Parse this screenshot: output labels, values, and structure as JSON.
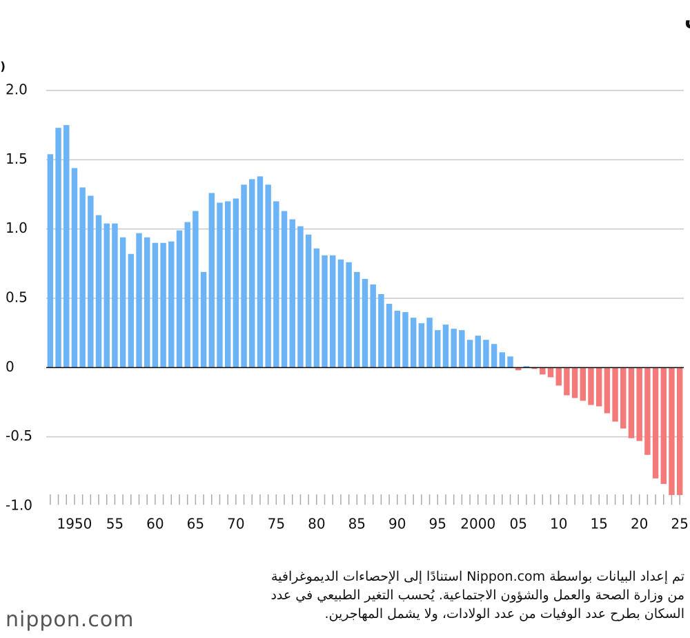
{
  "chart_data": {
    "type": "bar",
    "title": "الزيادة/الانخفاض الطبيعي في عدد السكان في اليابان",
    "y_unit": "(مليون)",
    "categories": [
      null,
      null,
      null,
      "1950",
      null,
      null,
      null,
      null,
      "55",
      null,
      null,
      null,
      null,
      "60",
      null,
      null,
      null,
      null,
      "65",
      null,
      null,
      null,
      null,
      "70",
      null,
      null,
      null,
      null,
      "75",
      null,
      null,
      null,
      null,
      "80",
      null,
      null,
      null,
      null,
      "85",
      null,
      null,
      null,
      null,
      "90",
      null,
      null,
      null,
      null,
      "95",
      null,
      null,
      null,
      null,
      "2000",
      null,
      null,
      null,
      null,
      "05",
      null,
      null,
      null,
      null,
      "10",
      null,
      null,
      null,
      null,
      "15",
      null,
      null,
      null,
      null,
      "20",
      null,
      null,
      null,
      null,
      "25"
    ],
    "values": [
      1.54,
      1.73,
      1.75,
      1.44,
      1.3,
      1.24,
      1.1,
      1.04,
      1.04,
      0.94,
      0.82,
      0.97,
      0.94,
      0.9,
      0.9,
      0.91,
      0.99,
      1.05,
      1.13,
      0.69,
      1.26,
      1.19,
      1.2,
      1.22,
      1.32,
      1.36,
      1.38,
      1.32,
      1.2,
      1.13,
      1.07,
      1.02,
      0.96,
      0.86,
      0.81,
      0.81,
      0.78,
      0.76,
      0.69,
      0.64,
      0.6,
      0.53,
      0.46,
      0.41,
      0.4,
      0.36,
      0.32,
      0.36,
      0.27,
      0.31,
      0.28,
      0.27,
      0.2,
      0.23,
      0.2,
      0.17,
      0.11,
      0.08,
      -0.02,
      0.01,
      -0.01,
      -0.05,
      -0.07,
      -0.13,
      -0.2,
      -0.22,
      -0.24,
      -0.27,
      -0.28,
      -0.33,
      -0.39,
      -0.44,
      -0.51,
      -0.53,
      -0.63,
      -0.8,
      -0.84,
      -0.92,
      -0.92
    ],
    "colors": {
      "positive": "#6cb4f5",
      "negative": "#f47a7a"
    },
    "ylim": [
      -1.0,
      2.0
    ],
    "yticks": [
      {
        "value": -1,
        "label": "-1.0"
      },
      -0.5,
      0,
      0.5,
      {
        "value": 1,
        "label": "1.0"
      },
      1.5,
      {
        "value": 2,
        "label": "2.0"
      }
    ],
    "grid": true
  },
  "note_lines": [
    "تم إعداد البيانات بواسطة Nippon.com استنادًا إلى الإحصاءات الديموغرافية",
    "من وزارة الصحة والعمل والشؤون الاجتماعية. يُحسب التغير الطبيعي في عدد",
    "السكان بطرح عدد الوفيات من عدد الولادات، ولا يشمل المهاجرين."
  ],
  "logo": "nippon.com"
}
